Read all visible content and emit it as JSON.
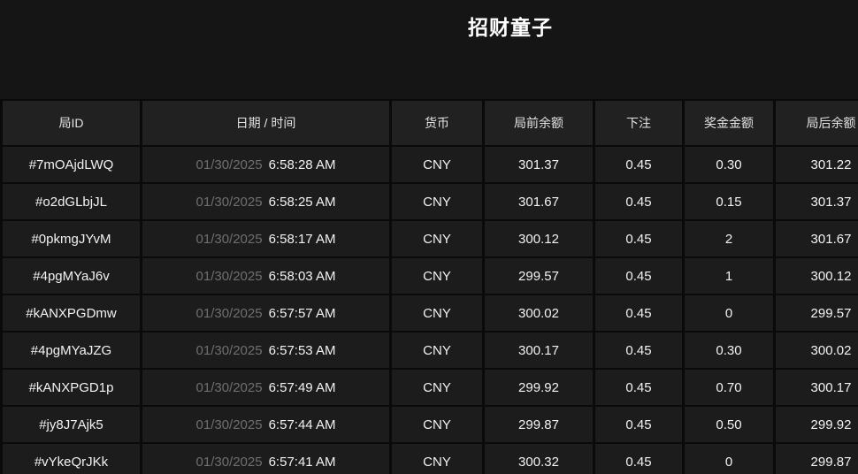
{
  "title": "招财童子",
  "colors": {
    "page_bg": "#151515",
    "header_bg": "#212121",
    "row_bg": "#1c1c1c",
    "border": "#0a0a0a",
    "text": "#f2f2f2",
    "muted_text": "#6f6f6f"
  },
  "table": {
    "columns": [
      "局ID",
      "日期 / 时间",
      "货币",
      "局前余额",
      "下注",
      "奖金金额",
      "局后余额"
    ],
    "rows": [
      {
        "id": "#7mOAjdLWQ",
        "date": "01/30/2025",
        "time": "6:58:28 AM",
        "currency": "CNY",
        "before": "301.37",
        "bet": "0.45",
        "prize": "0.30",
        "after": "301.22"
      },
      {
        "id": "#o2dGLbjJL",
        "date": "01/30/2025",
        "time": "6:58:25 AM",
        "currency": "CNY",
        "before": "301.67",
        "bet": "0.45",
        "prize": "0.15",
        "after": "301.37"
      },
      {
        "id": "#0pkmgJYvM",
        "date": "01/30/2025",
        "time": "6:58:17 AM",
        "currency": "CNY",
        "before": "300.12",
        "bet": "0.45",
        "prize": "2",
        "after": "301.67"
      },
      {
        "id": "#4pgMYaJ6v",
        "date": "01/30/2025",
        "time": "6:58:03 AM",
        "currency": "CNY",
        "before": "299.57",
        "bet": "0.45",
        "prize": "1",
        "after": "300.12"
      },
      {
        "id": "#kANXPGDmw",
        "date": "01/30/2025",
        "time": "6:57:57 AM",
        "currency": "CNY",
        "before": "300.02",
        "bet": "0.45",
        "prize": "0",
        "after": "299.57"
      },
      {
        "id": "#4pgMYaJZG",
        "date": "01/30/2025",
        "time": "6:57:53 AM",
        "currency": "CNY",
        "before": "300.17",
        "bet": "0.45",
        "prize": "0.30",
        "after": "300.02"
      },
      {
        "id": "#kANXPGD1p",
        "date": "01/30/2025",
        "time": "6:57:49 AM",
        "currency": "CNY",
        "before": "299.92",
        "bet": "0.45",
        "prize": "0.70",
        "after": "300.17"
      },
      {
        "id": "#jy8J7Ajk5",
        "date": "01/30/2025",
        "time": "6:57:44 AM",
        "currency": "CNY",
        "before": "299.87",
        "bet": "0.45",
        "prize": "0.50",
        "after": "299.92"
      },
      {
        "id": "#vYkeQrJKk",
        "date": "01/30/2025",
        "time": "6:57:41 AM",
        "currency": "CNY",
        "before": "300.32",
        "bet": "0.45",
        "prize": "0",
        "after": "299.87"
      }
    ]
  }
}
